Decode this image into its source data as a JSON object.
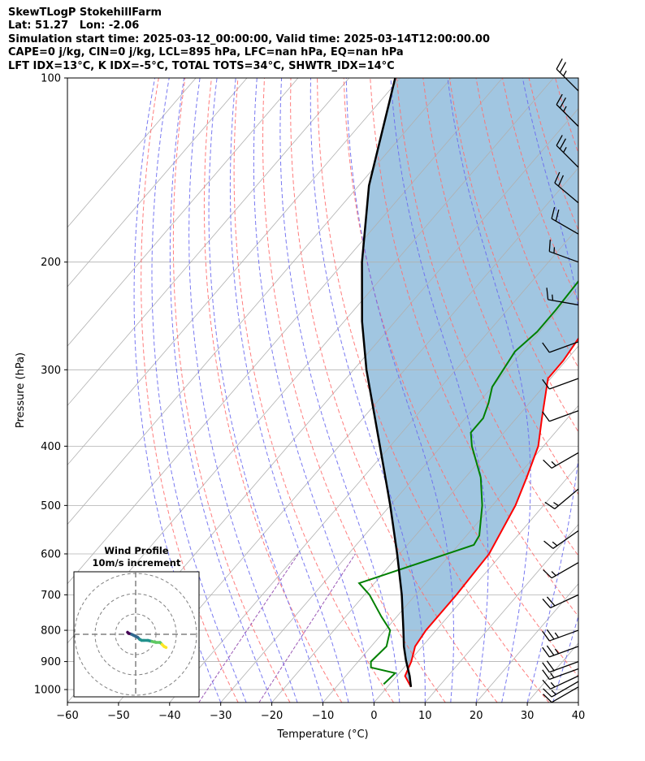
{
  "header": {
    "line1": "SkewTLogP StokehillFarm",
    "line2": "Lat: 51.27   Lon: -2.06",
    "line3": "Simulation start time: 2025-03-12_00:00:00, Valid time: 2025-03-14T12:00:00.00",
    "line4": "CAPE=0 j/kg, CIN=0 j/kg, LCL=895 hPa, LFC=nan hPa, EQ=nan hPa",
    "line5": "LFT IDX=13°C, K IDX=-5°C, TOTAL TOTS=34°C, SHWTR_IDX=14°C"
  },
  "chart_data": [
    {
      "type": "line",
      "subtype": "skew-t log-p",
      "xlabel": "Temperature (°C)",
      "ylabel": "Pressure (hPa)",
      "xlim": [
        -60,
        40
      ],
      "ylim": [
        1050,
        100
      ],
      "y_scale": "log",
      "x_ticks": [
        -60,
        -50,
        -40,
        -30,
        -20,
        -10,
        0,
        10,
        20,
        30,
        40
      ],
      "y_ticks": [
        100,
        200,
        300,
        400,
        500,
        600,
        700,
        800,
        900,
        1000
      ],
      "x_tick_labels": [
        "−60",
        "−50",
        "−40",
        "−30",
        "−20",
        "−10",
        "0",
        "10",
        "20",
        "30",
        "40"
      ],
      "y_tick_labels": [
        "100",
        "200",
        "300",
        "400",
        "500",
        "600",
        "700",
        "800",
        "900",
        "1000"
      ],
      "grid": true,
      "colors": {
        "temperature": "#ff0000",
        "dewpoint": "#008000",
        "parcel": "#000000",
        "cape_fill": "#a1c6e1",
        "isotherm": "#b0b0b0",
        "dry_adiabat": "#ff6f6f",
        "moist_adiabat": "#6a6af0",
        "mixing_ratio": "#9b59b6"
      },
      "series": [
        {
          "key": "temperature",
          "points": [
            [
              990,
              4.6
            ],
            [
              950,
              1.6
            ],
            [
              900,
              0.4
            ],
            [
              850,
              -1.4
            ],
            [
              800,
              -2.0
            ],
            [
              700,
              -2.0
            ],
            [
              600,
              -2.5
            ],
            [
              500,
              -5.5
            ],
            [
              450,
              -8.0
            ],
            [
              400,
              -11.0
            ],
            [
              360,
              -15.0
            ],
            [
              310,
              -20.5
            ],
            [
              290,
              -20.5
            ],
            [
              260,
              -21.5
            ],
            [
              240,
              -22.0
            ],
            [
              225,
              -21.5
            ],
            [
              200,
              -21.0
            ],
            [
              170,
              -24.0
            ],
            [
              150,
              -25.5
            ],
            [
              140,
              -25.5
            ],
            [
              120,
              -27.0
            ],
            [
              100,
              -30.5
            ]
          ]
        },
        {
          "key": "dewpoint",
          "points": [
            [
              980,
              -1.2
            ],
            [
              940,
              -0.8
            ],
            [
              920,
              -6.5
            ],
            [
              900,
              -7.5
            ],
            [
              870,
              -7.2
            ],
            [
              850,
              -7.0
            ],
            [
              800,
              -9.0
            ],
            [
              760,
              -13.0
            ],
            [
              700,
              -19.0
            ],
            [
              670,
              -23.0
            ],
            [
              580,
              -7.0
            ],
            [
              560,
              -7.5
            ],
            [
              500,
              -12.0
            ],
            [
              450,
              -17.0
            ],
            [
              400,
              -24.0
            ],
            [
              380,
              -26.5
            ],
            [
              360,
              -26.5
            ],
            [
              340,
              -28.0
            ],
            [
              320,
              -30.0
            ],
            [
              280,
              -31.5
            ],
            [
              260,
              -30.5
            ],
            [
              240,
              -30.5
            ],
            [
              210,
              -31.0
            ],
            [
              190,
              -31.0
            ],
            [
              175,
              -31.5
            ],
            [
              165,
              -33.5
            ],
            [
              150,
              -35.5
            ],
            [
              130,
              -35.0
            ],
            [
              100,
              -36.0
            ]
          ]
        },
        {
          "key": "parcel",
          "points": [
            [
              990,
              4.6
            ],
            [
              950,
              2.5
            ],
            [
              895,
              -0.9
            ],
            [
              850,
              -3.6
            ],
            [
              800,
              -6.4
            ],
            [
              700,
              -12.7
            ],
            [
              600,
              -20.5
            ],
            [
              500,
              -30.0
            ],
            [
              400,
              -42.0
            ],
            [
              300,
              -57.5
            ],
            [
              250,
              -66.5
            ],
            [
              200,
              -76.5
            ],
            [
              150,
              -88.0
            ],
            [
              100,
              -101.0
            ]
          ]
        }
      ],
      "wind_barbs": [
        {
          "p": 990,
          "speed_kt": 10,
          "dir_deg": 240
        },
        {
          "p": 970,
          "speed_kt": 15,
          "dir_deg": 240
        },
        {
          "p": 950,
          "speed_kt": 15,
          "dir_deg": 245
        },
        {
          "p": 925,
          "speed_kt": 15,
          "dir_deg": 250
        },
        {
          "p": 900,
          "speed_kt": 20,
          "dir_deg": 250
        },
        {
          "p": 850,
          "speed_kt": 25,
          "dir_deg": 250
        },
        {
          "p": 800,
          "speed_kt": 25,
          "dir_deg": 250
        },
        {
          "p": 700,
          "speed_kt": 20,
          "dir_deg": 245
        },
        {
          "p": 620,
          "speed_kt": 15,
          "dir_deg": 240
        },
        {
          "p": 550,
          "speed_kt": 15,
          "dir_deg": 235
        },
        {
          "p": 470,
          "speed_kt": 15,
          "dir_deg": 230
        },
        {
          "p": 410,
          "speed_kt": 15,
          "dir_deg": 240
        },
        {
          "p": 350,
          "speed_kt": 10,
          "dir_deg": 250
        },
        {
          "p": 310,
          "speed_kt": 10,
          "dir_deg": 250
        },
        {
          "p": 270,
          "speed_kt": 10,
          "dir_deg": 250
        },
        {
          "p": 235,
          "speed_kt": 15,
          "dir_deg": 280
        },
        {
          "p": 200,
          "speed_kt": 15,
          "dir_deg": 290
        },
        {
          "p": 180,
          "speed_kt": 20,
          "dir_deg": 300
        },
        {
          "p": 160,
          "speed_kt": 20,
          "dir_deg": 310
        },
        {
          "p": 140,
          "speed_kt": 25,
          "dir_deg": 315
        },
        {
          "p": 120,
          "speed_kt": 25,
          "dir_deg": 315
        },
        {
          "p": 105,
          "speed_kt": 25,
          "dir_deg": 315
        }
      ]
    },
    {
      "type": "scatter",
      "subtype": "hodograph",
      "title": "Wind Profile",
      "subtitle": "10m/s increment",
      "ring_increment_ms": 10,
      "rings": 3,
      "points_uv_ms": [
        [
          -4,
          1
        ],
        [
          -3.5,
          0.5
        ],
        [
          -2,
          0
        ],
        [
          -1,
          -0.5
        ],
        [
          1,
          -1.5
        ],
        [
          2,
          -2.5
        ],
        [
          3,
          -3
        ],
        [
          4,
          -3
        ],
        [
          6,
          -3
        ],
        [
          8,
          -3.5
        ],
        [
          10,
          -4
        ],
        [
          12,
          -4
        ],
        [
          13,
          -5
        ],
        [
          14,
          -6
        ],
        [
          15,
          -6.5
        ]
      ],
      "colormap": [
        "#440154",
        "#31688e",
        "#21918c",
        "#5ec962",
        "#fde725"
      ]
    }
  ]
}
